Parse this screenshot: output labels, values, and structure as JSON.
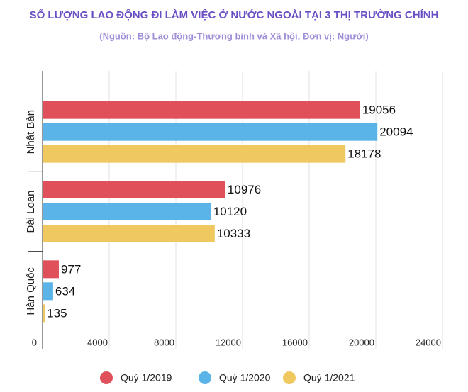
{
  "chart_data": {
    "type": "hbar",
    "title": "SỐ LƯỢNG LAO ĐỘNG ĐI LÀM VIỆC Ở NƯỚC NGOÀI TẠI 3 THỊ TRƯỜNG CHÍNH",
    "subtitle": "(Nguồn:  Bộ Lao động-Thương binh và Xã hội, Đơn vị: Người)",
    "categories": [
      "Nhật Bản",
      "Đài Loan",
      "Hàn Quốc"
    ],
    "series": [
      {
        "name": "Quý 1/2019",
        "color": "#e0505a",
        "values": [
          19056,
          10976,
          977
        ]
      },
      {
        "name": "Quý 1/2020",
        "color": "#5ab4e8",
        "values": [
          20094,
          10120,
          634
        ]
      },
      {
        "name": "Quý 1/2021",
        "color": "#f0c860",
        "values": [
          18178,
          10333,
          135
        ]
      }
    ],
    "xlim": [
      0,
      24000
    ],
    "xticks": [
      0,
      4000,
      8000,
      12000,
      16000,
      20000,
      24000
    ],
    "grid": true
  }
}
